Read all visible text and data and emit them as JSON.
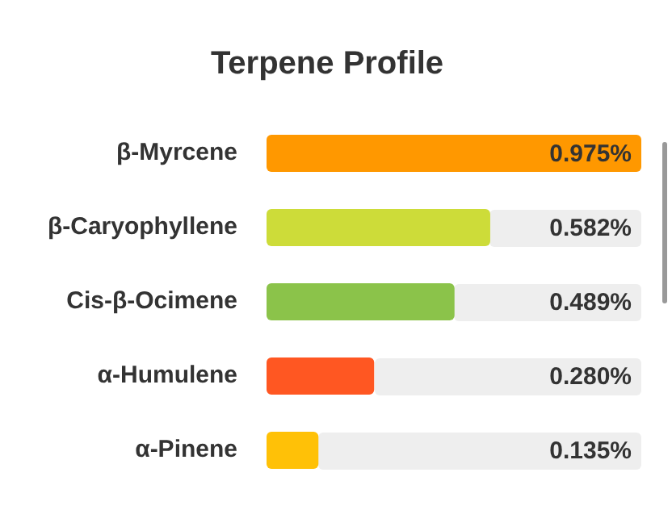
{
  "chart_data": {
    "type": "bar",
    "orientation": "horizontal",
    "title": "Terpene Profile",
    "categories": [
      "β-Myrcene",
      "β-Caryophyllene",
      "Cis-β-Ocimene",
      "α-Humulene",
      "α-Pinene"
    ],
    "values": [
      0.975,
      0.582,
      0.489,
      0.28,
      0.135
    ],
    "colors": [
      "#ff9800",
      "#cddc39",
      "#8bc34a",
      "#ff5722",
      "#ffc107"
    ],
    "value_labels": [
      "0.975%",
      "0.582%",
      "0.489%",
      "0.280%",
      "0.135%"
    ],
    "xlim": [
      0,
      0.975
    ],
    "tick_labels": "y",
    "legend": false
  }
}
